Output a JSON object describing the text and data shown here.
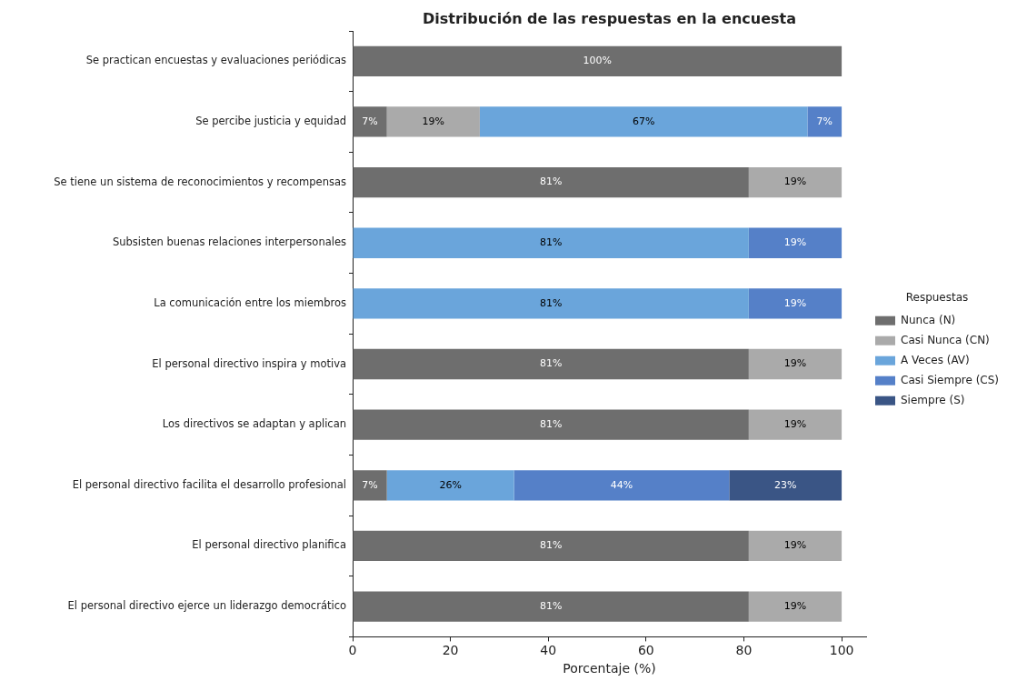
{
  "chart_data": {
    "type": "bar",
    "title": "Distribución de las respuestas en la encuesta",
    "xlabel": "Porcentaje (%)",
    "legend_title": "Respuestas",
    "legend": "right",
    "orientation": "horizontal",
    "stacked": true,
    "grid": false,
    "xlim": [
      0,
      105
    ],
    "xticks": [
      0,
      20,
      40,
      60,
      80,
      100
    ],
    "categories": [
      "Se practican encuestas y evaluaciones periódicas",
      "Se percibe justicia y equidad",
      "Se tiene un sistema de reconocimientos y recompensas",
      "Subsisten buenas relaciones interpersonales",
      "La comunicación entre los miembros",
      "El personal directivo inspira y motiva",
      "Los directivos se adaptan y aplican",
      "El personal directivo facilita el desarrollo profesional",
      "El personal directivo planifica",
      "El personal directivo ejerce un liderazgo democrático"
    ],
    "series": [
      {
        "name": "Nunca (N)",
        "color": "#6e6e6e",
        "values": [
          100,
          7,
          81,
          null,
          null,
          81,
          81,
          7,
          81,
          81
        ],
        "value_labels": [
          "100%",
          "7%",
          "81%",
          null,
          null,
          "81%",
          "81%",
          "7%",
          "81%",
          "81%"
        ]
      },
      {
        "name": "Casi Nunca (CN)",
        "color": "#aaaaaa",
        "values": [
          null,
          19,
          19,
          null,
          null,
          19,
          19,
          null,
          19,
          19
        ],
        "value_labels": [
          null,
          "19%",
          "19%",
          null,
          null,
          "19%",
          "19%",
          null,
          "19%",
          "19%"
        ]
      },
      {
        "name": "A Veces (AV)",
        "color": "#6aa5db",
        "values": [
          null,
          67,
          null,
          81,
          81,
          null,
          null,
          26,
          null,
          null
        ],
        "value_labels": [
          null,
          "67%",
          null,
          "81%",
          "81%",
          null,
          null,
          "26%",
          null,
          null
        ]
      },
      {
        "name": "Casi Siempre (CS)",
        "color": "#5580c8",
        "values": [
          null,
          7,
          null,
          19,
          19,
          null,
          null,
          44,
          null,
          null
        ],
        "value_labels": [
          null,
          "7%",
          null,
          "19%",
          "19%",
          null,
          null,
          "44%",
          null,
          null
        ]
      },
      {
        "name": "Siempre (S)",
        "color": "#3a5585",
        "values": [
          null,
          null,
          null,
          null,
          null,
          null,
          null,
          23,
          null,
          null
        ],
        "value_labels": [
          null,
          null,
          null,
          null,
          null,
          null,
          null,
          "23%",
          null,
          null
        ]
      }
    ]
  }
}
